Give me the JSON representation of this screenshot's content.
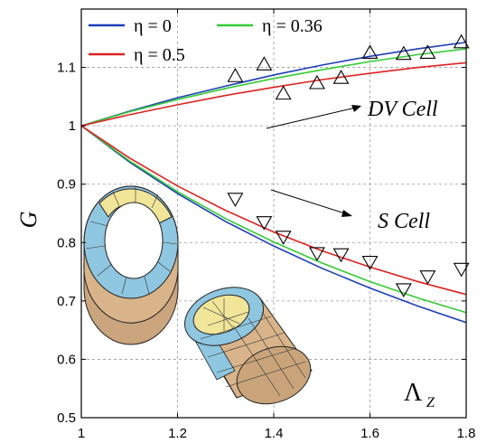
{
  "chart_data": {
    "type": "line",
    "xlim": [
      1,
      1.8
    ],
    "ylim": [
      0.5,
      1.2
    ],
    "x_ticks": [
      "1",
      "1.2",
      "1.4",
      "1.6",
      "1.8"
    ],
    "y_ticks": [
      "0.5",
      "0.6",
      "0.7",
      "0.8",
      "0.9",
      "1",
      "1.1"
    ],
    "xlabel": "Λ_Z",
    "ylabel": "G",
    "grid": true,
    "legend": {
      "position": "top-left",
      "entries": [
        {
          "text": "η = 0",
          "color": "#1f3fb8"
        },
        {
          "text": "η = 0.36",
          "color": "#33cc33"
        },
        {
          "text": "η = 0.5",
          "color": "#dd2222"
        }
      ]
    },
    "annotations": {
      "dv_cell": "DV Cell",
      "s_cell": "S Cell"
    },
    "series": [
      {
        "group": "DV",
        "color": "#1f3fb8",
        "x": [
          1.0,
          1.1,
          1.2,
          1.3,
          1.4,
          1.5,
          1.6,
          1.7,
          1.8
        ],
        "y": [
          1.0,
          1.025,
          1.048,
          1.068,
          1.087,
          1.104,
          1.119,
          1.132,
          1.143
        ]
      },
      {
        "group": "DV",
        "color": "#33cc33",
        "x": [
          1.0,
          1.1,
          1.2,
          1.3,
          1.4,
          1.5,
          1.6,
          1.7,
          1.8
        ],
        "y": [
          1.0,
          1.024,
          1.045,
          1.064,
          1.081,
          1.096,
          1.11,
          1.122,
          1.132
        ]
      },
      {
        "group": "DV",
        "color": "#dd2222",
        "x": [
          1.0,
          1.1,
          1.2,
          1.3,
          1.4,
          1.5,
          1.6,
          1.7,
          1.8
        ],
        "y": [
          1.0,
          1.019,
          1.036,
          1.052,
          1.066,
          1.079,
          1.09,
          1.1,
          1.108
        ]
      },
      {
        "group": "S",
        "color": "#1f3fb8",
        "x": [
          1.0,
          1.1,
          1.2,
          1.3,
          1.4,
          1.5,
          1.6,
          1.7,
          1.8
        ],
        "y": [
          1.0,
          0.938,
          0.884,
          0.836,
          0.794,
          0.756,
          0.722,
          0.691,
          0.663
        ]
      },
      {
        "group": "S",
        "color": "#33cc33",
        "x": [
          1.0,
          1.1,
          1.2,
          1.3,
          1.4,
          1.5,
          1.6,
          1.7,
          1.8
        ],
        "y": [
          1.0,
          0.94,
          0.887,
          0.841,
          0.801,
          0.765,
          0.733,
          0.705,
          0.68
        ]
      },
      {
        "group": "S",
        "color": "#dd2222",
        "x": [
          1.0,
          1.1,
          1.2,
          1.3,
          1.4,
          1.5,
          1.6,
          1.7,
          1.8
        ],
        "y": [
          1.0,
          0.945,
          0.897,
          0.855,
          0.818,
          0.786,
          0.758,
          0.733,
          0.711
        ]
      }
    ],
    "markers": {
      "up_triangles": [
        {
          "x": 1.32,
          "y": 1.085
        },
        {
          "x": 1.38,
          "y": 1.105
        },
        {
          "x": 1.42,
          "y": 1.055
        },
        {
          "x": 1.49,
          "y": 1.073
        },
        {
          "x": 1.54,
          "y": 1.082
        },
        {
          "x": 1.6,
          "y": 1.125
        },
        {
          "x": 1.67,
          "y": 1.123
        },
        {
          "x": 1.72,
          "y": 1.125
        },
        {
          "x": 1.79,
          "y": 1.143
        }
      ],
      "down_triangles": [
        {
          "x": 1.32,
          "y": 0.875
        },
        {
          "x": 1.38,
          "y": 0.835
        },
        {
          "x": 1.42,
          "y": 0.81
        },
        {
          "x": 1.49,
          "y": 0.782
        },
        {
          "x": 1.54,
          "y": 0.78
        },
        {
          "x": 1.6,
          "y": 0.767
        },
        {
          "x": 1.67,
          "y": 0.72
        },
        {
          "x": 1.72,
          "y": 0.742
        },
        {
          "x": 1.79,
          "y": 0.755
        }
      ]
    }
  }
}
